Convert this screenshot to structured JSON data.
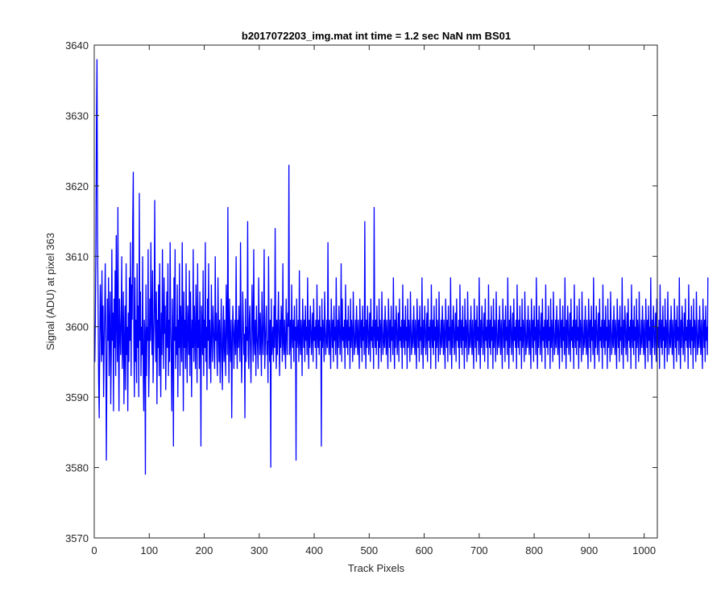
{
  "chart_data": {
    "type": "line",
    "title": "b2017072203_img.mat int time = 1.2 sec  NaN nm BS01",
    "xlabel": "Track Pixels",
    "ylabel": "Signal (ADU) at pixel 363",
    "xlim": [
      0,
      1024
    ],
    "ylim": [
      3570,
      3640
    ],
    "xticks": [
      0,
      100,
      200,
      300,
      400,
      500,
      600,
      700,
      800,
      900,
      1000
    ],
    "yticks": [
      3570,
      3580,
      3590,
      3600,
      3610,
      3620,
      3630,
      3640
    ],
    "grid": false,
    "legend": "none",
    "series": [
      {
        "color": "#0000ff",
        "x_start": 1,
        "x_step": 1,
        "y_min": 3579,
        "y_max": 3638,
        "values": [
          3595,
          3601,
          3611,
          3629,
          3638,
          3612,
          3603,
          3592,
          3587,
          3598,
          3606,
          3601,
          3595,
          3608,
          3596,
          3603,
          3590,
          3597,
          3602,
          3609,
          3599,
          3581,
          3594,
          3604,
          3598,
          3607,
          3593,
          3600,
          3605,
          3589,
          3596,
          3611,
          3598,
          3602,
          3588,
          3604,
          3597,
          3608,
          3593,
          3613,
          3601,
          3595,
          3617,
          3598,
          3588,
          3604,
          3600,
          3596,
          3601,
          3610,
          3594,
          3598,
          3605,
          3589,
          3597,
          3603,
          3591,
          3609,
          3596,
          3600,
          3588,
          3602,
          3595,
          3607,
          3598,
          3612,
          3593,
          3606,
          3601,
          3615,
          3622,
          3598,
          3590,
          3607,
          3595,
          3601,
          3592,
          3609,
          3597,
          3603,
          3590,
          3619,
          3598,
          3605,
          3593,
          3600,
          3596,
          3610,
          3594,
          3588,
          3601,
          3599,
          3579,
          3606,
          3593,
          3600,
          3598,
          3611,
          3590,
          3595,
          3604,
          3598,
          3612,
          3601,
          3596,
          3608,
          3592,
          3597,
          3603,
          3618,
          3600,
          3595,
          3605,
          3589,
          3601,
          3597,
          3606,
          3593,
          3609,
          3598,
          3590,
          3602,
          3596,
          3611,
          3600,
          3594,
          3607,
          3599,
          3603,
          3591,
          3598,
          3605,
          3597,
          3609,
          3593,
          3601,
          3595,
          3612,
          3600,
          3596,
          3588,
          3604,
          3599,
          3583,
          3607,
          3598,
          3611,
          3594,
          3600,
          3596,
          3606,
          3590,
          3601,
          3597,
          3609,
          3593,
          3603,
          3599,
          3595,
          3612,
          3600,
          3588,
          3605,
          3597,
          3601,
          3594,
          3609,
          3598,
          3592,
          3603,
          3600,
          3596,
          3608,
          3593,
          3605,
          3599,
          3590,
          3601,
          3597,
          3611,
          3595,
          3603,
          3599,
          3594,
          3606,
          3600,
          3592,
          3609,
          3597,
          3601,
          3594,
          3605,
          3598,
          3583,
          3603,
          3600,
          3596,
          3608,
          3593,
          3601,
          3597,
          3612,
          3595,
          3600,
          3591,
          3604,
          3598,
          3609,
          3594,
          3601,
          3597,
          3592,
          3606,
          3599,
          3595,
          3603,
          3600,
          3597,
          3594,
          3610,
          3598,
          3602,
          3596,
          3593,
          3607,
          3600,
          3595,
          3601,
          3592,
          3598,
          3604,
          3596,
          3591,
          3599,
          3603,
          3595,
          3601,
          3597,
          3593,
          3606,
          3600,
          3596,
          3617,
          3599,
          3592,
          3604,
          3598,
          3595,
          3601,
          3587,
          3597,
          3603,
          3600,
          3594,
          3599,
          3601,
          3596,
          3610,
          3598,
          3594,
          3601,
          3597,
          3603,
          3599,
          3595,
          3612,
          3600,
          3592,
          3597,
          3605,
          3601,
          3596,
          3599,
          3587,
          3604,
          3595,
          3600,
          3598,
          3615,
          3596,
          3594,
          3601,
          3603,
          3597,
          3592,
          3599,
          3606,
          3600,
          3595,
          3611,
          3598,
          3596,
          3601,
          3593,
          3603,
          3599,
          3597,
          3594,
          3607,
          3600,
          3596,
          3602,
          3598,
          3593,
          3605,
          3599,
          3596,
          3601,
          3611,
          3594,
          3597,
          3600,
          3603,
          3596,
          3598,
          3592,
          3610,
          3599,
          3595,
          3601,
          3580,
          3604,
          3596,
          3598,
          3600,
          3595,
          3603,
          3597,
          3614,
          3599,
          3594,
          3601,
          3596,
          3600,
          3605,
          3598,
          3593,
          3601,
          3597,
          3603,
          3600,
          3595,
          3609,
          3598,
          3596,
          3601,
          3597,
          3594,
          3604,
          3599,
          3596,
          3602,
          3600,
          3623,
          3596,
          3598,
          3601,
          3594,
          3606,
          3599,
          3597,
          3601,
          3595,
          3603,
          3598,
          3600,
          3581,
          3604,
          3597,
          3599,
          3601,
          3595,
          3608,
          3598,
          3596,
          3601,
          3599,
          3593,
          3604,
          3600,
          3597,
          3601,
          3595,
          3603,
          3598,
          3600,
          3596,
          3607,
          3599,
          3594,
          3601,
          3597,
          3603,
          3600,
          3596,
          3599,
          3602,
          3595,
          3604,
          3598,
          3600,
          3597,
          3601,
          3594,
          3606,
          3599,
          3597,
          3601,
          3596,
          3603,
          3598,
          3600,
          3583,
          3604,
          3597,
          3601,
          3599,
          3595,
          3605,
          3600,
          3596,
          3598,
          3601,
          3597,
          3612,
          3599,
          3596,
          3601,
          3598,
          3594,
          3604,
          3600,
          3597,
          3601,
          3595,
          3603,
          3598,
          3600,
          3596,
          3607,
          3599,
          3594,
          3601,
          3597,
          3603,
          3600,
          3596,
          3599,
          3609,
          3595,
          3604,
          3598,
          3600,
          3597,
          3601,
          3594,
          3606,
          3599,
          3597,
          3601,
          3596,
          3603,
          3598,
          3600,
          3594,
          3604,
          3597,
          3601,
          3599,
          3595,
          3605,
          3600,
          3596,
          3598,
          3601,
          3597,
          3603,
          3599,
          3596,
          3601,
          3598,
          3594,
          3604,
          3600,
          3597,
          3601,
          3595,
          3603,
          3598,
          3600,
          3596,
          3615,
          3599,
          3594,
          3601,
          3597,
          3603,
          3600,
          3596,
          3599,
          3602,
          3595,
          3604,
          3598,
          3600,
          3597,
          3601,
          3594,
          3617,
          3599,
          3597,
          3601,
          3596,
          3603,
          3598,
          3600,
          3594,
          3604,
          3597,
          3601,
          3599,
          3595,
          3605,
          3600,
          3596,
          3598,
          3601,
          3597,
          3603,
          3599,
          3596,
          3601,
          3598,
          3594,
          3604,
          3600,
          3597,
          3601,
          3595,
          3603,
          3598,
          3600,
          3596,
          3607,
          3599,
          3594,
          3601,
          3597,
          3603,
          3600,
          3596,
          3599,
          3602,
          3595,
          3604,
          3598,
          3600,
          3597,
          3601,
          3594,
          3606,
          3599,
          3597,
          3601,
          3596,
          3603,
          3598,
          3600,
          3594,
          3604,
          3597,
          3601,
          3599,
          3595,
          3605,
          3600,
          3596,
          3598,
          3601,
          3597,
          3603,
          3599,
          3596,
          3601,
          3598,
          3594,
          3604,
          3600,
          3597,
          3601,
          3595,
          3603,
          3598,
          3600,
          3596,
          3607,
          3599,
          3594,
          3601,
          3597,
          3603,
          3600,
          3596,
          3599,
          3602,
          3595,
          3604,
          3598,
          3600,
          3597,
          3601,
          3594,
          3606,
          3599,
          3597,
          3601,
          3596,
          3603,
          3598,
          3600,
          3594,
          3604,
          3597,
          3601,
          3599,
          3595,
          3605,
          3600,
          3596,
          3598,
          3601,
          3597,
          3603,
          3599,
          3596,
          3601,
          3598,
          3594,
          3604,
          3600,
          3597,
          3601,
          3595,
          3603,
          3598,
          3600,
          3596,
          3607,
          3599,
          3594,
          3601,
          3597,
          3603,
          3600,
          3596,
          3599,
          3602,
          3595,
          3604,
          3598,
          3600,
          3597,
          3601,
          3594,
          3606,
          3599,
          3597,
          3601,
          3596,
          3603,
          3598,
          3600,
          3594,
          3604,
          3597,
          3601,
          3599,
          3595,
          3605,
          3600,
          3596,
          3598,
          3601,
          3597,
          3603,
          3599,
          3596,
          3601,
          3598,
          3594,
          3604,
          3600,
          3597,
          3601,
          3595,
          3603,
          3598,
          3600,
          3596,
          3607,
          3599,
          3594,
          3601,
          3597,
          3603,
          3600,
          3596,
          3599,
          3602,
          3595,
          3604,
          3598,
          3600,
          3597,
          3601,
          3594,
          3606,
          3599,
          3597,
          3601,
          3596,
          3603,
          3598,
          3600,
          3594,
          3604,
          3597,
          3601,
          3599,
          3595,
          3605,
          3600,
          3596,
          3598,
          3601,
          3597,
          3603,
          3599,
          3596,
          3601,
          3598,
          3594,
          3604,
          3600,
          3597,
          3601,
          3595,
          3603,
          3598,
          3600,
          3596,
          3607,
          3599,
          3594,
          3601,
          3597,
          3603,
          3600,
          3596,
          3599,
          3602,
          3595,
          3604,
          3598,
          3600,
          3597,
          3601,
          3594,
          3606,
          3599,
          3597,
          3601,
          3596,
          3603,
          3598,
          3600,
          3594,
          3604,
          3597,
          3601,
          3599,
          3595,
          3605,
          3600,
          3596,
          3598,
          3601,
          3597,
          3603,
          3599,
          3596,
          3601,
          3598,
          3594,
          3604,
          3600,
          3597,
          3601,
          3595,
          3603,
          3598,
          3600,
          3596,
          3607,
          3599,
          3594,
          3601,
          3597,
          3603,
          3600,
          3596,
          3599,
          3602,
          3595,
          3604,
          3598,
          3600,
          3597,
          3601,
          3594,
          3606,
          3599,
          3597,
          3601,
          3596,
          3603,
          3598,
          3600,
          3594,
          3604,
          3597,
          3601,
          3599,
          3595,
          3605,
          3600,
          3596,
          3598,
          3601,
          3597,
          3603,
          3599,
          3596,
          3601,
          3598,
          3594,
          3604,
          3600,
          3597,
          3601,
          3595,
          3603,
          3598,
          3600,
          3596,
          3607,
          3599,
          3594,
          3601,
          3597,
          3603,
          3600,
          3596,
          3599,
          3602,
          3595,
          3604,
          3598,
          3600,
          3597,
          3601,
          3594,
          3606,
          3599,
          3597,
          3601,
          3596,
          3603,
          3598,
          3600,
          3594,
          3604,
          3597,
          3601,
          3599,
          3595,
          3605,
          3600,
          3596,
          3598,
          3601,
          3597,
          3603,
          3599,
          3596,
          3601,
          3598,
          3594,
          3604,
          3600,
          3597,
          3601,
          3595,
          3603,
          3598,
          3600,
          3596,
          3607,
          3599,
          3594,
          3601,
          3597,
          3603,
          3600,
          3596,
          3599,
          3602,
          3595,
          3604,
          3598,
          3600,
          3597,
          3601,
          3594,
          3606,
          3599,
          3597,
          3601,
          3596,
          3603,
          3598,
          3600,
          3594,
          3604,
          3597,
          3601,
          3599,
          3595,
          3605,
          3600,
          3596,
          3598,
          3601,
          3597,
          3603,
          3599,
          3596,
          3601,
          3598,
          3594,
          3604,
          3600,
          3597,
          3601,
          3595,
          3603,
          3598,
          3600,
          3596,
          3607,
          3599,
          3594,
          3601,
          3597,
          3603,
          3600,
          3596,
          3599,
          3602,
          3595,
          3604,
          3598,
          3600,
          3597,
          3601,
          3594,
          3606,
          3599,
          3597,
          3601,
          3596,
          3603,
          3598,
          3600,
          3594,
          3604,
          3597,
          3601,
          3599,
          3595,
          3605,
          3600,
          3596,
          3598,
          3601,
          3597,
          3603,
          3599,
          3596,
          3601,
          3598,
          3594,
          3604,
          3600,
          3597,
          3601,
          3595,
          3603,
          3598,
          3600,
          3596,
          3607,
          3599,
          3594,
          3601,
          3597,
          3603,
          3600,
          3596,
          3599,
          3602,
          3595,
          3604,
          3598,
          3600,
          3597,
          3601,
          3594,
          3606,
          3599,
          3597,
          3601,
          3596,
          3603,
          3598,
          3600,
          3594,
          3604,
          3597,
          3601,
          3599,
          3595,
          3605,
          3600,
          3596,
          3598,
          3601,
          3597,
          3603,
          3599,
          3596,
          3601,
          3598,
          3594,
          3604,
          3600,
          3597,
          3601,
          3595,
          3603,
          3598,
          3600,
          3596,
          3607,
          3599,
          3594,
          3601,
          3597,
          3603,
          3600,
          3596,
          3599,
          3602,
          3595,
          3604,
          3598,
          3600,
          3597,
          3601,
          3594,
          3606,
          3599,
          3597,
          3601,
          3596,
          3603,
          3598,
          3600,
          3594,
          3604,
          3597,
          3601,
          3599,
          3595,
          3605,
          3600,
          3596,
          3598,
          3601,
          3597,
          3603,
          3599,
          3596,
          3601,
          3598,
          3594,
          3604,
          3600,
          3597,
          3601,
          3595,
          3603,
          3598,
          3600,
          3596,
          3607
        ]
      }
    ]
  }
}
